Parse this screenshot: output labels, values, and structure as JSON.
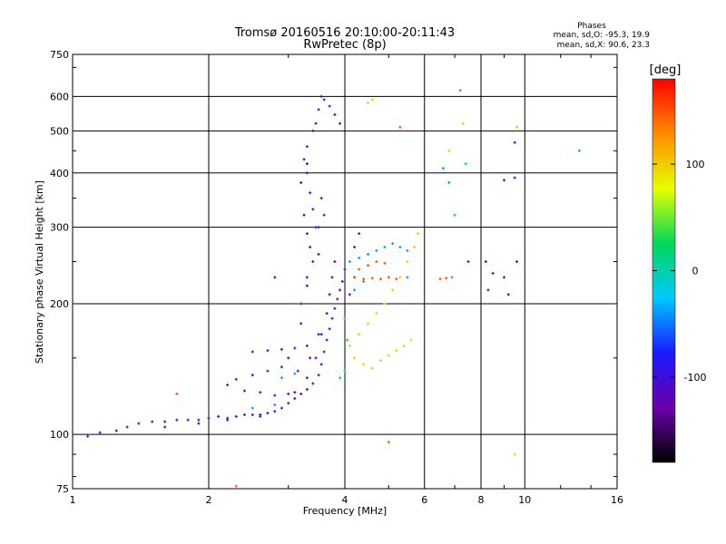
{
  "chart_data": {
    "type": "scatter",
    "title": "Tromsø 20160516 20:10:00-20:11:43",
    "subtitle": "RwPretec (8p)",
    "xlabel": "Frequency [MHz]",
    "ylabel": "Stationary phase Virtual Height [km]",
    "x_scale": "log",
    "y_scale": "log",
    "xlim": [
      1,
      16
    ],
    "ylim": [
      75,
      750
    ],
    "x_ticks": [
      1,
      2,
      4,
      6,
      8,
      10,
      16
    ],
    "x_tick_labels": [
      "1",
      "2",
      "4",
      "6",
      "8",
      "10",
      "16"
    ],
    "y_ticks": [
      75,
      100,
      200,
      300,
      400,
      500,
      600,
      750
    ],
    "y_tick_labels": [
      "75",
      "100",
      "200",
      "300",
      "400",
      "500",
      "600",
      "750"
    ],
    "grid": true,
    "colorbar": {
      "label": "[deg]",
      "range": [
        -180,
        180
      ],
      "ticks": [
        100,
        0,
        -100
      ],
      "tick_labels": [
        "100",
        "0",
        "-100"
      ],
      "colors": [
        "#000000",
        "#6a00a8",
        "#1a1aff",
        "#00c8ff",
        "#00d85a",
        "#e6ff00",
        "#ff8c00",
        "#ff0000"
      ]
    },
    "stats": {
      "heading": "Phases",
      "o_line": "mean, sd,O:  -95.3, 19.9",
      "x_line": "mean, sd,X:  90.6, 23.3"
    },
    "series": [
      {
        "description": "blue traces",
        "phase": -100,
        "points": [
          [
            1.08,
            99
          ],
          [
            1.15,
            101
          ],
          [
            1.25,
            102
          ],
          [
            1.32,
            104
          ],
          [
            1.4,
            106
          ],
          [
            1.5,
            107
          ],
          [
            1.6,
            107
          ],
          [
            1.7,
            108
          ],
          [
            1.8,
            108
          ],
          [
            1.9,
            108
          ],
          [
            2.0,
            109
          ],
          [
            2.1,
            110
          ],
          [
            2.2,
            109
          ],
          [
            2.3,
            110
          ],
          [
            2.4,
            111
          ],
          [
            2.5,
            111
          ],
          [
            2.6,
            110
          ],
          [
            2.7,
            112
          ],
          [
            2.8,
            113
          ],
          [
            2.9,
            115
          ],
          [
            3.0,
            118
          ],
          [
            3.1,
            121
          ],
          [
            3.2,
            124
          ],
          [
            3.3,
            127
          ],
          [
            3.4,
            131
          ],
          [
            3.5,
            137
          ],
          [
            3.55,
            145
          ],
          [
            3.6,
            155
          ],
          [
            3.65,
            165
          ],
          [
            3.7,
            175
          ],
          [
            3.75,
            185
          ],
          [
            3.8,
            195
          ],
          [
            3.85,
            205
          ],
          [
            3.9,
            215
          ],
          [
            3.95,
            225
          ],
          [
            4.0,
            240
          ],
          [
            3.45,
            300
          ],
          [
            3.4,
            330
          ],
          [
            3.35,
            360
          ],
          [
            3.3,
            400
          ],
          [
            3.25,
            430
          ],
          [
            3.3,
            460
          ],
          [
            3.4,
            500
          ],
          [
            3.5,
            560
          ],
          [
            3.6,
            590
          ],
          [
            3.7,
            570
          ],
          [
            3.8,
            545
          ],
          [
            3.9,
            520
          ],
          [
            2.2,
            130
          ],
          [
            2.4,
            126
          ],
          [
            2.6,
            125
          ],
          [
            2.8,
            123
          ],
          [
            3.0,
            124
          ],
          [
            2.3,
            134
          ],
          [
            2.5,
            137
          ],
          [
            2.7,
            140
          ],
          [
            2.9,
            143
          ],
          [
            2.5,
            155
          ],
          [
            2.7,
            156
          ],
          [
            2.9,
            157
          ],
          [
            3.1,
            158
          ],
          [
            3.3,
            160
          ],
          [
            3.15,
            140
          ],
          [
            3.35,
            150
          ],
          [
            3.5,
            170
          ],
          [
            3.2,
            180
          ],
          [
            3.3,
            230
          ],
          [
            3.4,
            250
          ],
          [
            3.35,
            270
          ],
          [
            3.5,
            300
          ],
          [
            3.6,
            320
          ],
          [
            3.55,
            350
          ],
          [
            4.2,
            270
          ],
          [
            4.3,
            290
          ],
          [
            4.1,
            210
          ],
          [
            4.2,
            230
          ]
        ]
      },
      {
        "description": "purple traces",
        "phase": -135,
        "points": [
          [
            1.6,
            104
          ],
          [
            1.9,
            106
          ],
          [
            2.2,
            108
          ],
          [
            2.6,
            111
          ],
          [
            3.1,
            125
          ],
          [
            3.3,
            135
          ],
          [
            3.45,
            150
          ],
          [
            3.55,
            170
          ],
          [
            3.65,
            190
          ],
          [
            3.7,
            210
          ],
          [
            3.75,
            230
          ],
          [
            3.8,
            250
          ],
          [
            3.3,
            290
          ],
          [
            3.25,
            320
          ],
          [
            3.2,
            380
          ],
          [
            3.3,
            420
          ],
          [
            3.45,
            520
          ],
          [
            3.55,
            600
          ],
          [
            3.3,
            220
          ],
          [
            3.2,
            200
          ],
          [
            3.5,
            260
          ],
          [
            2.8,
            230
          ],
          [
            3.0,
            150
          ]
        ]
      },
      {
        "description": "cyan traces",
        "phase": -40,
        "points": [
          [
            2.5,
            115
          ],
          [
            2.8,
            117
          ],
          [
            2.9,
            135
          ],
          [
            3.1,
            138
          ],
          [
            4.1,
            250
          ],
          [
            4.3,
            255
          ],
          [
            4.5,
            260
          ],
          [
            4.7,
            265
          ],
          [
            4.9,
            270
          ],
          [
            5.1,
            275
          ],
          [
            5.3,
            270
          ],
          [
            5.5,
            265
          ],
          [
            4.2,
            215
          ],
          [
            4.4,
            225
          ],
          [
            5.5,
            230
          ],
          [
            6.8,
            380
          ],
          [
            6.6,
            410
          ],
          [
            7.2,
            620
          ],
          [
            13.2,
            450
          ]
        ]
      },
      {
        "description": "yellow traces",
        "phase": 100,
        "points": [
          [
            4.1,
            160
          ],
          [
            4.3,
            170
          ],
          [
            4.5,
            180
          ],
          [
            4.7,
            190
          ],
          [
            4.9,
            200
          ],
          [
            5.1,
            215
          ],
          [
            5.3,
            230
          ],
          [
            5.5,
            250
          ],
          [
            5.7,
            270
          ],
          [
            5.8,
            290
          ],
          [
            4.2,
            150
          ],
          [
            4.4,
            145
          ],
          [
            4.6,
            142
          ],
          [
            4.8,
            148
          ],
          [
            5.0,
            152
          ],
          [
            5.2,
            156
          ],
          [
            5.4,
            160
          ],
          [
            5.6,
            165
          ],
          [
            4.5,
            580
          ],
          [
            4.6,
            590
          ],
          [
            6.8,
            450
          ],
          [
            7.3,
            520
          ],
          [
            9.6,
            510
          ],
          [
            9.5,
            90
          ]
        ]
      },
      {
        "description": "orange traces",
        "phase": 150,
        "points": [
          [
            4.3,
            240
          ],
          [
            4.5,
            245
          ],
          [
            4.7,
            250
          ],
          [
            4.9,
            248
          ],
          [
            4.2,
            230
          ],
          [
            4.4,
            228
          ],
          [
            4.6,
            229
          ],
          [
            4.8,
            228
          ],
          [
            5.0,
            230
          ],
          [
            5.2,
            228
          ],
          [
            6.5,
            228
          ],
          [
            6.7,
            229
          ],
          [
            6.9,
            230
          ],
          [
            5.3,
            510
          ],
          [
            1.7,
            124
          ],
          [
            2.3,
            76
          ],
          [
            5.0,
            96
          ]
        ]
      },
      {
        "description": "green/teal traces",
        "phase": 25,
        "points": [
          [
            4.0,
            140
          ],
          [
            4.05,
            165
          ],
          [
            4.0,
            185
          ],
          [
            7.4,
            420
          ],
          [
            7.0,
            320
          ],
          [
            3.9,
            135
          ]
        ]
      },
      {
        "description": "scattered high-frequency",
        "phase": -90,
        "points": [
          [
            8.2,
            250
          ],
          [
            8.5,
            235
          ],
          [
            9.0,
            230
          ],
          [
            9.2,
            210
          ],
          [
            9.6,
            250
          ],
          [
            8.3,
            215
          ],
          [
            9.5,
            390
          ],
          [
            9.0,
            385
          ],
          [
            9.5,
            470
          ],
          [
            7.5,
            250
          ]
        ]
      }
    ]
  }
}
